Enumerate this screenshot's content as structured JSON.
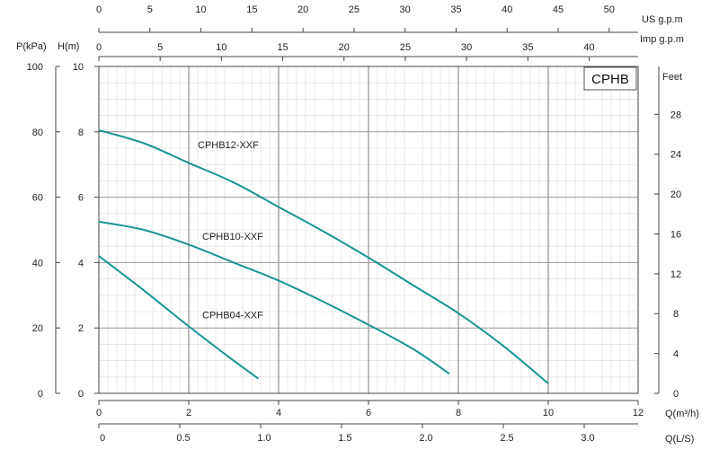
{
  "chart_data": {
    "type": "line",
    "title": "CPHB",
    "xlabel": "Q(m³/h)",
    "ylabel": "H(m)",
    "xlim": [
      0,
      12
    ],
    "ylim": [
      0,
      10
    ],
    "grid": true,
    "x_ticks": [
      "0",
      "2",
      "4",
      "6",
      "8",
      "10",
      "12"
    ],
    "y_ticks_h": [
      "0",
      "2",
      "4",
      "6",
      "8",
      "10"
    ],
    "y_ticks_kpa": [
      "0",
      "20",
      "40",
      "60",
      "80",
      "100"
    ],
    "y_ticks_feet": [
      "0",
      "4",
      "8",
      "12",
      "16",
      "20",
      "24",
      "28"
    ],
    "secondary_axes": {
      "us_gpm": {
        "label": "US  g.p.m",
        "ticks": [
          {
            "value": 0,
            "label": "0"
          },
          {
            "value": 5,
            "label": "5"
          },
          {
            "value": 10,
            "label": "10"
          },
          {
            "value": 15,
            "label": "15"
          },
          {
            "value": 20,
            "label": "20"
          },
          {
            "value": 25,
            "label": "25"
          },
          {
            "value": 30,
            "label": "30"
          },
          {
            "value": 35,
            "label": "35"
          },
          {
            "value": 40,
            "label": "40"
          },
          {
            "value": 45,
            "label": "45"
          },
          {
            "value": 50,
            "label": "50"
          }
        ]
      },
      "imp_gpm": {
        "label": "Imp  g.p.m",
        "ticks": [
          {
            "value": 0,
            "label": "0"
          },
          {
            "value": 5,
            "label": "5"
          },
          {
            "value": 10,
            "label": "10"
          },
          {
            "value": 15,
            "label": "15"
          },
          {
            "value": 20,
            "label": "20"
          },
          {
            "value": 25,
            "label": "25"
          },
          {
            "value": 30,
            "label": "30"
          },
          {
            "value": 35,
            "label": "35"
          },
          {
            "value": 40,
            "label": "40"
          }
        ]
      },
      "ls": {
        "label": "Q(L/S)",
        "ticks": [
          {
            "value": 0,
            "label": "0"
          },
          {
            "value": 0.5,
            "label": "0.5"
          },
          {
            "value": 1.0,
            "label": "1.0"
          },
          {
            "value": 1.5,
            "label": "1.5"
          },
          {
            "value": 2.0,
            "label": "2.0"
          },
          {
            "value": 2.5,
            "label": "2.5"
          },
          {
            "value": 3.0,
            "label": "3.0"
          }
        ]
      },
      "p_kpa_label": "P(kPa)",
      "feet_label": "Feet"
    },
    "series": [
      {
        "name": "CPHB12-XXF",
        "x": [
          0,
          1,
          2,
          3,
          4,
          5,
          6,
          7,
          8,
          9,
          10
        ],
        "y": [
          8.05,
          7.65,
          7.05,
          6.45,
          5.7,
          4.95,
          4.15,
          3.3,
          2.45,
          1.45,
          0.3
        ]
      },
      {
        "name": "CPHB10-XXF",
        "x": [
          0,
          1,
          2,
          3,
          4,
          5,
          6,
          7,
          7.8
        ],
        "y": [
          5.25,
          5.0,
          4.55,
          4.0,
          3.45,
          2.8,
          2.1,
          1.35,
          0.6
        ]
      },
      {
        "name": "CPHB04-XXF",
        "x": [
          0,
          1,
          2,
          3,
          3.55
        ],
        "y": [
          4.2,
          3.15,
          2.05,
          1.0,
          0.45
        ]
      }
    ],
    "curve_color": "#1a9494"
  }
}
